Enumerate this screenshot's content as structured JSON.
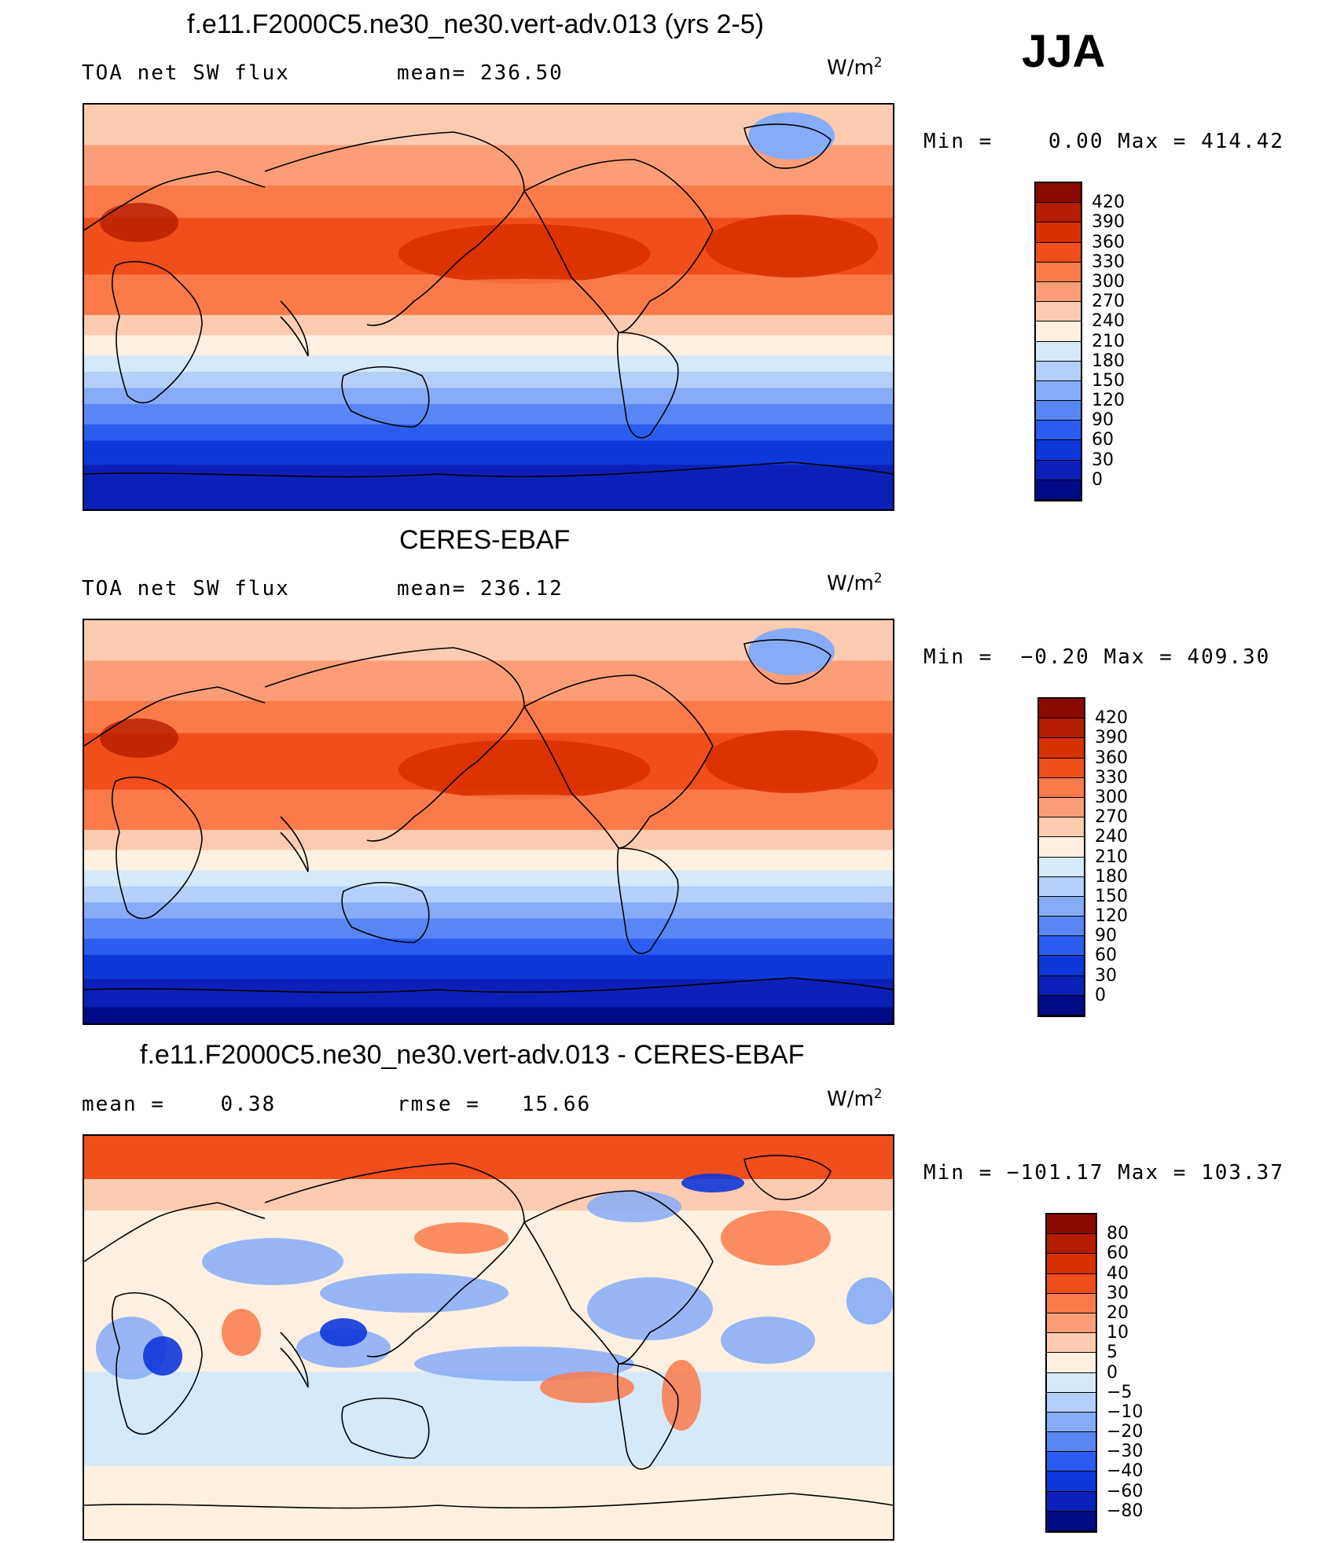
{
  "season": "JJA",
  "panels": [
    {
      "title": "f.e11.F2000C5.ne30_ne30.vert-adv.013 (yrs 2-5)",
      "left_label": "TOA net SW flux",
      "center_label": "mean= 236.50",
      "units": "W/m",
      "units_sup": "2",
      "minmax": "Min =    0.00 Max = 414.42",
      "colorbar": {
        "labels": [
          "420",
          "390",
          "360",
          "330",
          "300",
          "270",
          "240",
          "210",
          "180",
          "150",
          "120",
          "90",
          "60",
          "30",
          "0"
        ],
        "colors": [
          "#8b0a00",
          "#b51d00",
          "#d83100",
          "#f04e1a",
          "#fa7a4a",
          "#fb9e78",
          "#fdcbb0",
          "#fef0e0",
          "#d6e9f9",
          "#b4cffa",
          "#86acf8",
          "#5886f5",
          "#2b5cf0",
          "#0e37d9",
          "#0a20b8",
          "#000b85"
        ]
      },
      "map_type": "sw"
    },
    {
      "title": "CERES-EBAF",
      "left_label": "TOA net SW flux",
      "center_label": "mean= 236.12",
      "units": "W/m",
      "units_sup": "2",
      "minmax": "Min =  −0.20 Max = 409.30",
      "colorbar": {
        "labels": [
          "420",
          "390",
          "360",
          "330",
          "300",
          "270",
          "240",
          "210",
          "180",
          "150",
          "120",
          "90",
          "60",
          "30",
          "0"
        ],
        "colors": [
          "#8b0a00",
          "#b51d00",
          "#d83100",
          "#f04e1a",
          "#fa7a4a",
          "#fb9e78",
          "#fdcbb0",
          "#fef0e0",
          "#d6e9f9",
          "#b4cffa",
          "#86acf8",
          "#5886f5",
          "#2b5cf0",
          "#0e37d9",
          "#0a20b8",
          "#000b85"
        ]
      },
      "map_type": "sw"
    },
    {
      "title": "f.e11.F2000C5.ne30_ne30.vert-adv.013 - CERES-EBAF",
      "left_label": "mean =    0.38",
      "center_label": "rmse =   15.66",
      "units": "W/m",
      "units_sup": "2",
      "minmax": "Min = −101.17 Max = 103.37",
      "colorbar": {
        "labels": [
          "80",
          "60",
          "40",
          "30",
          "20",
          "10",
          "5",
          "0",
          "−5",
          "−10",
          "−20",
          "−30",
          "−40",
          "−60",
          "−80"
        ],
        "colors": [
          "#8b0a00",
          "#b51d00",
          "#d83100",
          "#f04e1a",
          "#fa7a4a",
          "#fb9e78",
          "#fdcbb0",
          "#fef0e0",
          "#d6e9f9",
          "#b4cffa",
          "#86acf8",
          "#5886f5",
          "#2b5cf0",
          "#0e37d9",
          "#0a20b8",
          "#000b85"
        ]
      },
      "map_type": "diff"
    }
  ]
}
